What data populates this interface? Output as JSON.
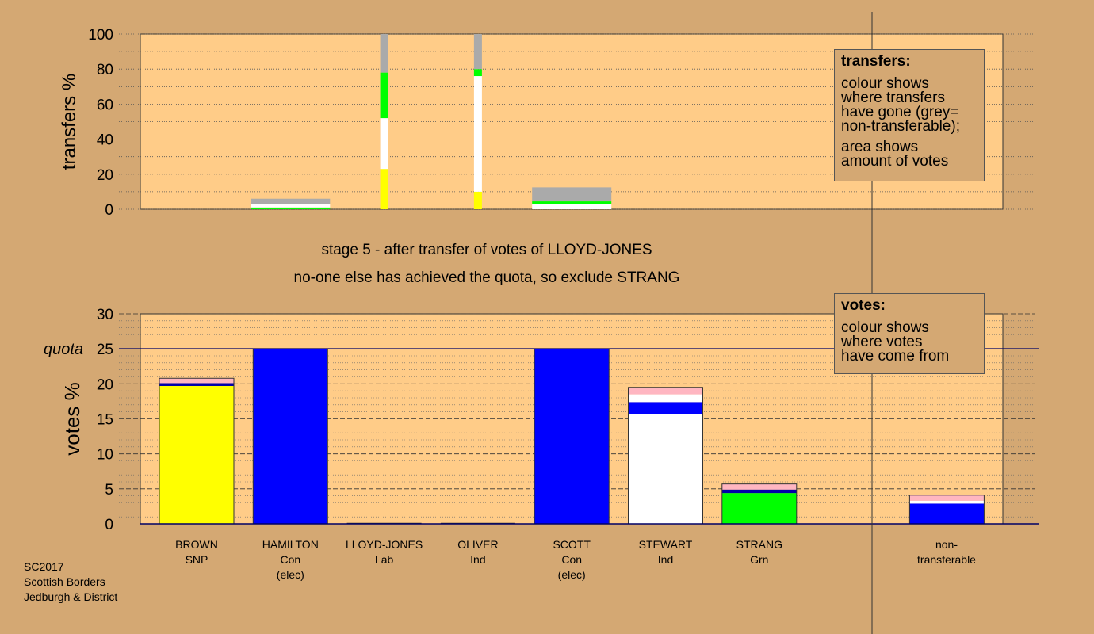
{
  "texts": {
    "stage_title": "stage 5 - after transfer of votes of LLOYD-JONES",
    "stage_subtitle": "no-one else has achieved the quota, so exclude STRANG",
    "quota_label": "quota",
    "footer": [
      "SC2017",
      "Scottish Borders",
      "Jedburgh & District"
    ]
  },
  "legends": {
    "transfers": {
      "title": "transfers:",
      "lines": [
        "colour shows",
        "where transfers",
        "have gone (grey=",
        "non-transferable);"
      ],
      "lines2": [
        "area shows",
        "amount of votes"
      ]
    },
    "votes": {
      "title": "votes:",
      "lines": [
        "colour shows",
        "where votes",
        "have come from"
      ]
    }
  },
  "candidates": [
    {
      "name": "BROWN",
      "party": "SNP",
      "note": ""
    },
    {
      "name": "HAMILTON",
      "party": "Con",
      "note": "(elec)"
    },
    {
      "name": "LLOYD-JONES",
      "party": "Lab",
      "note": ""
    },
    {
      "name": "OLIVER",
      "party": "Ind",
      "note": ""
    },
    {
      "name": "SCOTT",
      "party": "Con",
      "note": "(elec)"
    },
    {
      "name": "STEWART",
      "party": "Ind",
      "note": ""
    },
    {
      "name": "STRANG",
      "party": "Grn",
      "note": ""
    }
  ],
  "nontransferable_label": [
    "non-",
    "transferable"
  ],
  "colors": {
    "background": "#d4a873",
    "plot_bg": "#ffcc88",
    "BROWN": "#ffff00",
    "HAMILTON": "#0000ff",
    "SCOTT": "#0000ff",
    "STEWART": "#ffffff",
    "STRANG": "#00ff00",
    "LLOYD-JONES": "#ffb6c1",
    "OLIVER": "#0000aa",
    "nontransferable": "#aaaaaa",
    "quota_line": "#000066"
  },
  "chart_data": [
    {
      "type": "bar",
      "stacked": true,
      "ylabel": "transfers %",
      "ylim": [
        0,
        100
      ],
      "yticks": [
        0,
        20,
        40,
        60,
        80,
        100
      ],
      "legend_position": "top-right",
      "bars": [
        {
          "slot": 1,
          "width_class": "wide",
          "segments": [
            {
              "who": "STRANG",
              "value": 1
            },
            {
              "who": "STEWART",
              "value": 2
            },
            {
              "who": "nontransferable",
              "value": 3
            }
          ]
        },
        {
          "slot": 2,
          "width_class": "narrow",
          "segments": [
            {
              "who": "BROWN",
              "value": 23
            },
            {
              "who": "STEWART",
              "value": 29
            },
            {
              "who": "STRANG",
              "value": 26
            },
            {
              "who": "nontransferable",
              "value": 22
            }
          ]
        },
        {
          "slot": 3,
          "width_class": "narrow",
          "segments": [
            {
              "who": "BROWN",
              "value": 10
            },
            {
              "who": "STEWART",
              "value": 66
            },
            {
              "who": "STRANG",
              "value": 4
            },
            {
              "who": "nontransferable",
              "value": 20
            }
          ]
        },
        {
          "slot": 4,
          "width_class": "wide",
          "segments": [
            {
              "who": "STEWART",
              "value": 3
            },
            {
              "who": "STRANG",
              "value": 1.5
            },
            {
              "who": "nontransferable",
              "value": 8
            }
          ]
        }
      ]
    },
    {
      "type": "bar",
      "stacked": true,
      "ylabel": "votes %",
      "ylim": [
        0,
        30
      ],
      "yticks": [
        0,
        5,
        10,
        15,
        20,
        25,
        30
      ],
      "quota": 25,
      "legend_position": "top-right",
      "bars": [
        {
          "slot": 0,
          "segments": [
            {
              "who": "BROWN",
              "value": 19.7
            },
            {
              "who": "OLIVER",
              "value": 0.4
            },
            {
              "who": "LLOYD-JONES",
              "value": 0.7
            }
          ]
        },
        {
          "slot": 1,
          "segments": [
            {
              "who": "HAMILTON",
              "value": 25
            }
          ]
        },
        {
          "slot": 2,
          "segments": []
        },
        {
          "slot": 3,
          "segments": []
        },
        {
          "slot": 4,
          "segments": [
            {
              "who": "SCOTT",
              "value": 25
            }
          ]
        },
        {
          "slot": 5,
          "segments": [
            {
              "who": "STEWART",
              "value": 15.7
            },
            {
              "who": "SCOTT",
              "value": 1.7
            },
            {
              "who": "STEWART",
              "value": 1.1
            },
            {
              "who": "LLOYD-JONES",
              "value": 1.0
            }
          ]
        },
        {
          "slot": 6,
          "segments": [
            {
              "who": "STRANG",
              "value": 4.4
            },
            {
              "who": "OLIVER",
              "value": 0.5
            },
            {
              "who": "LLOYD-JONES",
              "value": 0.8
            }
          ]
        },
        {
          "slot": 8,
          "segments": [
            {
              "who": "HAMILTON",
              "value": 2.9
            },
            {
              "who": "STEWART",
              "value": 0.4
            },
            {
              "who": "LLOYD-JONES",
              "value": 0.8
            }
          ]
        }
      ]
    }
  ]
}
